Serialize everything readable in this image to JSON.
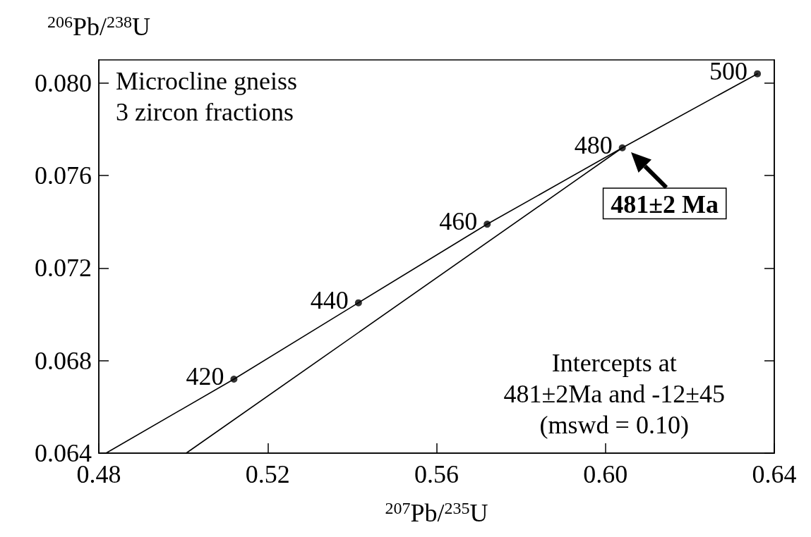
{
  "chart_data": {
    "type": "line",
    "xlabel": "$^{207}$Pb/$^{235}$U",
    "ylabel": "$^{206}$Pb/$^{238}$U",
    "xlim": [
      0.48,
      0.64
    ],
    "ylim": [
      0.064,
      0.081
    ],
    "xticks": [
      0.48,
      0.52,
      0.56,
      {
        "value": 0.6,
        "label": "0.60"
      },
      0.64
    ],
    "yticks": [
      {
        "value": 0.064,
        "label": "0.064"
      },
      {
        "value": 0.068,
        "label": "0.068"
      },
      {
        "value": 0.072,
        "label": "0.072"
      },
      {
        "value": 0.076,
        "label": "0.076"
      },
      {
        "value": 0.08,
        "label": "0.080"
      }
    ],
    "annotations": [
      {
        "text": "420",
        "x": 0.512,
        "y": 0.0672
      },
      {
        "text": "440",
        "x": 0.5415,
        "y": 0.0705
      },
      {
        "text": "460",
        "x": 0.572,
        "y": 0.0739
      },
      {
        "text": "480",
        "x": 0.604,
        "y": 0.0772
      },
      {
        "text": "500",
        "x": 0.636,
        "y": 0.0804
      },
      {
        "text": "481±2 Ma",
        "x": 0.604,
        "y": 0.0772
      },
      "Microcline gneiss\n3 zircon fractions",
      "Intercepts at\n481±2Ma and -12±45\n(mswd = 0.10)"
    ],
    "series": [
      {
        "color": "#000000",
        "marker": "none",
        "x": [
          0.4817,
          0.512,
          0.5415,
          0.572,
          0.604,
          0.636
        ],
        "values": [
          0.064,
          0.0672,
          0.0705,
          0.0739,
          0.0772,
          0.0804
        ]
      },
      {
        "color": "#000000",
        "marker": "none",
        "x": [
          0.5007,
          0.604
        ],
        "values": [
          0.064,
          0.0772
        ]
      },
      {
        "type": "scatter",
        "color": "#000000",
        "marker": "circle",
        "x": [
          0.512,
          0.5415,
          0.572,
          0.604,
          0.636
        ],
        "values": [
          0.0672,
          0.0705,
          0.0739,
          0.0772,
          0.0804
        ]
      }
    ]
  }
}
